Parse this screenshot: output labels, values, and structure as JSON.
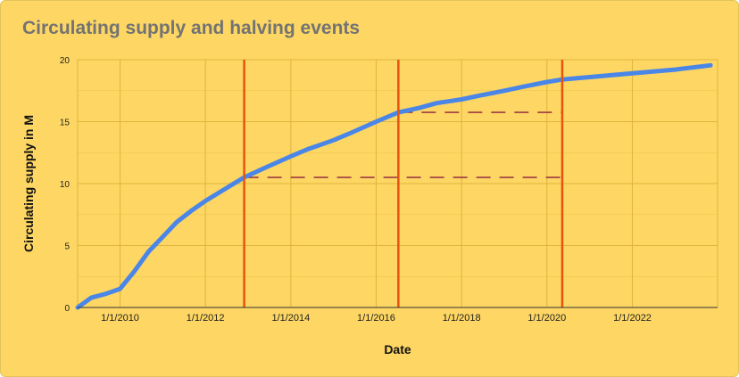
{
  "chart_data": {
    "type": "line",
    "title": "Circulating supply and halving events",
    "xlabel": "Date",
    "ylabel": "Circulating supply in M",
    "ylim": [
      0,
      20
    ],
    "xlim": [
      "2009-01-03",
      "2023-12-31"
    ],
    "yticks": [
      "0",
      "5",
      "10",
      "15",
      "20"
    ],
    "xticks": [
      {
        "date": "2010-01-01",
        "label": "1/1/2010"
      },
      {
        "date": "2012-01-01",
        "label": "1/1/2012"
      },
      {
        "date": "2014-01-01",
        "label": "1/1/2014"
      },
      {
        "date": "2016-01-01",
        "label": "1/1/2016"
      },
      {
        "date": "2018-01-01",
        "label": "1/1/2018"
      },
      {
        "date": "2020-01-01",
        "label": "1/1/2020"
      },
      {
        "date": "2022-01-01",
        "label": "1/1/2022"
      }
    ],
    "grid": true,
    "series": [
      {
        "color": "#4a86e8",
        "x": [
          "2009-01-03",
          "2009-05-01",
          "2009-09-01",
          "2010-01-01",
          "2010-05-01",
          "2010-09-01",
          "2011-01-01",
          "2011-05-01",
          "2011-09-01",
          "2012-01-01",
          "2012-05-01",
          "2012-11-28",
          "2013-06-01",
          "2014-01-01",
          "2014-06-01",
          "2015-01-01",
          "2015-06-01",
          "2016-01-01",
          "2016-07-09",
          "2017-01-01",
          "2017-06-01",
          "2018-01-01",
          "2018-06-01",
          "2019-01-01",
          "2019-06-01",
          "2020-01-01",
          "2020-05-11",
          "2021-01-01",
          "2022-01-01",
          "2023-01-01",
          "2023-11-01"
        ],
        "y": [
          0.0,
          0.8,
          1.1,
          1.5,
          2.9,
          4.5,
          5.7,
          6.9,
          7.8,
          8.6,
          9.3,
          10.5,
          11.3,
          12.2,
          12.8,
          13.5,
          14.1,
          15.0,
          15.75,
          16.1,
          16.5,
          16.8,
          17.1,
          17.5,
          17.8,
          18.2,
          18.4,
          18.6,
          18.9,
          19.2,
          19.55
        ]
      }
    ],
    "halvings": [
      "2012-11-28",
      "2016-07-09",
      "2020-05-11"
    ],
    "reference_lines": [
      {
        "y": 10.5,
        "from": "2012-11-28",
        "to": "2020-05-11"
      },
      {
        "y": 15.75,
        "from": "2016-07-09",
        "to": "2020-05-11"
      }
    ],
    "colors": {
      "background": "#fdd663",
      "grid": "#e0b53c",
      "halving_line": "#e8540f",
      "reference_line": "#8b1f3c",
      "axis": "#333333"
    }
  }
}
